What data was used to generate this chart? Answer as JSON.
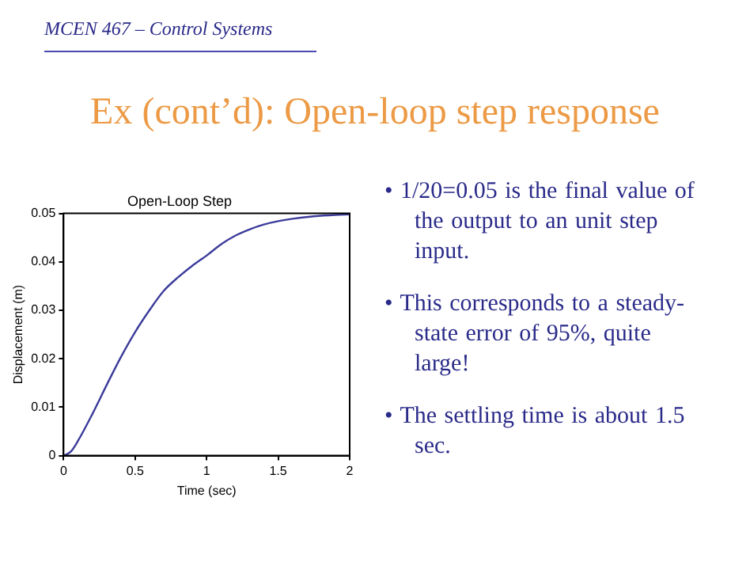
{
  "chart_data": {
    "type": "line",
    "title": "Open-Loop Step",
    "xlabel": "Time (sec)",
    "ylabel": "Displacement (m)",
    "x": [
      0,
      0.05,
      0.1,
      0.2,
      0.3,
      0.4,
      0.5,
      0.6,
      0.7,
      0.8,
      0.9,
      1.0,
      1.1,
      1.2,
      1.3,
      1.4,
      1.5,
      1.6,
      1.75,
      1.9,
      2.0
    ],
    "series": [
      {
        "color": "#3b3b9b",
        "values": [
          0,
          0.0008,
          0.003,
          0.0085,
          0.0145,
          0.0203,
          0.0255,
          0.03,
          0.034,
          0.0368,
          0.0392,
          0.0413,
          0.0436,
          0.0454,
          0.0467,
          0.0477,
          0.0484,
          0.0489,
          0.0494,
          0.0497,
          0.0498
        ]
      }
    ],
    "xlim": [
      0,
      2
    ],
    "xticks": [
      0,
      0.5,
      1,
      1.5,
      2
    ],
    "ylim": [
      0,
      0.05
    ],
    "yticks": [
      0,
      0.01,
      0.02,
      0.03,
      0.04,
      0.05
    ],
    "grid": false,
    "legend": false,
    "marker": "none",
    "line_style": "solid",
    "annotations": [
      "MCEN 467 – Control Systems",
      "Ex (cont’d): Open-loop step response",
      "• 1/20=0.05 is the final value of the output to an unit step input.",
      "• This corresponds to a steady-state error of 95%, quite large!",
      "• The settling time is about 1.5 sec."
    ]
  }
}
